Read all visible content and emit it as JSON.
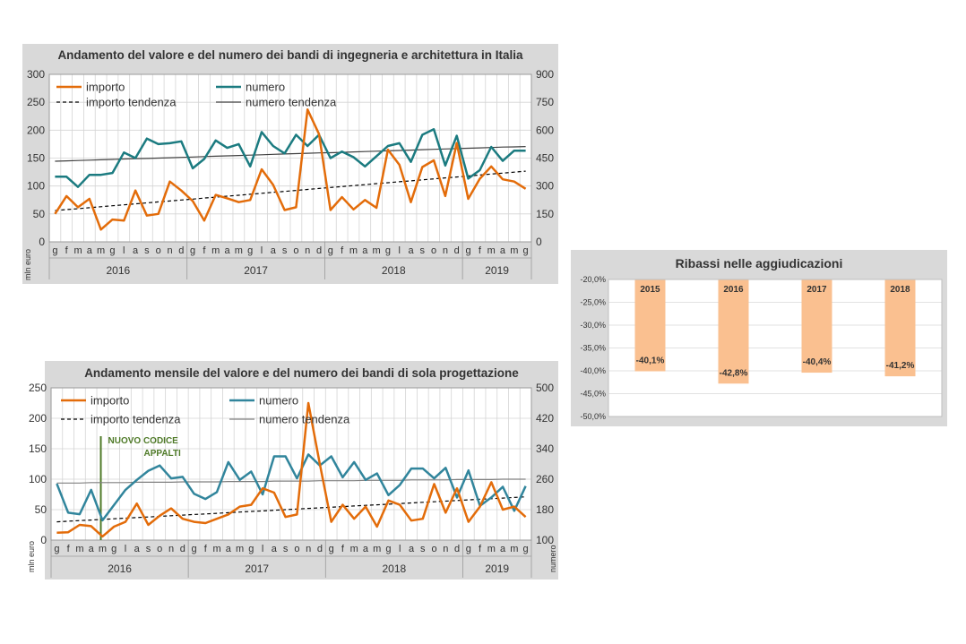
{
  "chart_data": [
    {
      "type": "line",
      "title": "Andamento del valore e del numero dei bandi di ingegneria e architettura in Italia",
      "ylabel": "mln euro",
      "ylabel_right": "",
      "ylim": [
        0,
        300
      ],
      "y_ticks": [
        0,
        50,
        100,
        150,
        200,
        250,
        300
      ],
      "y2lim": [
        0,
        900
      ],
      "y2_ticks": [
        0,
        150,
        300,
        450,
        600,
        750,
        900
      ],
      "month_labels": [
        "g",
        "f",
        "m",
        "a",
        "m",
        "g",
        "l",
        "a",
        "s",
        "o",
        "n",
        "d",
        "g",
        "f",
        "m",
        "a",
        "m",
        "g",
        "l",
        "a",
        "s",
        "o",
        "n",
        "d",
        "g",
        "f",
        "m",
        "a",
        "m",
        "g",
        "l",
        "a",
        "s",
        "o",
        "n",
        "d",
        "g",
        "f",
        "m",
        "a",
        "m",
        "g"
      ],
      "years": [
        {
          "label": "2016",
          "months": 12
        },
        {
          "label": "2017",
          "months": 12
        },
        {
          "label": "2018",
          "months": 12
        },
        {
          "label": "2019",
          "months": 6
        }
      ],
      "legend": {
        "importo": "importo",
        "numero": "numero",
        "importo_trend": "importo tendenza",
        "numero_trend": "numero tendenza"
      },
      "colors": {
        "importo": "#e36c0a",
        "numero": "#1b7b80",
        "importo_trend": "#000000",
        "numero_trend": "#404040"
      },
      "series": [
        {
          "name": "importo",
          "axis": "left",
          "values": [
            50,
            82,
            62,
            77,
            22,
            40,
            38,
            92,
            47,
            50,
            108,
            92,
            73,
            38,
            84,
            78,
            71,
            75,
            130,
            102,
            57,
            62,
            237,
            193,
            57,
            80,
            58,
            75,
            61,
            165,
            138,
            71,
            134,
            146,
            82,
            177,
            77,
            113,
            135,
            112,
            108,
            95
          ]
        },
        {
          "name": "numero",
          "axis": "right",
          "values": [
            350,
            350,
            295,
            360,
            360,
            370,
            480,
            450,
            555,
            525,
            530,
            540,
            395,
            445,
            545,
            505,
            525,
            405,
            590,
            515,
            475,
            575,
            515,
            575,
            450,
            485,
            455,
            405,
            460,
            515,
            530,
            430,
            575,
            605,
            410,
            570,
            340,
            385,
            510,
            435,
            490,
            490
          ]
        },
        {
          "name": "importo tendenza",
          "axis": "left",
          "values": [
            56.0,
            57.7,
            59.4,
            61.2,
            62.9,
            64.6,
            66.3,
            68.0,
            69.8,
            71.5,
            73.2,
            74.9,
            76.6,
            78.4,
            80.1,
            81.8,
            83.5,
            85.2,
            87.0,
            88.7,
            90.4,
            92.1,
            93.8,
            95.6,
            97.3,
            99.0,
            100.7,
            102.4,
            104.2,
            105.9,
            107.6,
            109.3,
            111.0,
            112.8,
            114.5,
            116.2,
            117.9,
            119.6,
            121.4,
            123.1,
            124.8,
            126.5
          ]
        },
        {
          "name": "numero tendenza",
          "axis": "right",
          "values": [
            433,
            435,
            437,
            439,
            441,
            443,
            445,
            447,
            448,
            450,
            452,
            454,
            456,
            458,
            460,
            462,
            464,
            466,
            468,
            470,
            472,
            474,
            476,
            478,
            479,
            481,
            483,
            485,
            487,
            489,
            491,
            493,
            495,
            497,
            499,
            501,
            503,
            505,
            507,
            509,
            510,
            512
          ]
        }
      ]
    },
    {
      "type": "bar",
      "title": "Ribassi nelle aggiudicazioni",
      "categories": [
        "2015",
        "2016",
        "2017",
        "2018"
      ],
      "values": [
        -40.1,
        -42.8,
        -40.4,
        -41.2
      ],
      "value_labels": [
        "-40,1%",
        "-42,8%",
        "-40,4%",
        "-41,2%"
      ],
      "ylim": [
        -50,
        -20
      ],
      "y_ticks": [
        "-20,0%",
        "-25,0%",
        "-30,0%",
        "-35,0%",
        "-40,0%",
        "-45,0%",
        "-50,0%"
      ],
      "colors": {
        "bar": "#fac090"
      }
    },
    {
      "type": "line",
      "title": "Andamento mensile del valore e del numero dei bandi di sola progettazione",
      "ylabel": "mln euro",
      "ylabel_right": "numero",
      "ylim": [
        0,
        250
      ],
      "y_ticks": [
        0,
        50,
        100,
        150,
        200,
        250
      ],
      "y2lim": [
        100,
        500
      ],
      "y2_ticks": [
        100,
        180,
        260,
        340,
        420,
        500
      ],
      "month_labels": [
        "g",
        "f",
        "m",
        "a",
        "m",
        "g",
        "l",
        "a",
        "s",
        "o",
        "n",
        "d",
        "g",
        "f",
        "m",
        "a",
        "m",
        "g",
        "l",
        "a",
        "s",
        "o",
        "n",
        "d",
        "g",
        "f",
        "m",
        "a",
        "m",
        "g",
        "l",
        "a",
        "s",
        "o",
        "n",
        "d",
        "g",
        "f",
        "m",
        "a",
        "m",
        "g"
      ],
      "years": [
        {
          "label": "2016",
          "months": 12
        },
        {
          "label": "2017",
          "months": 12
        },
        {
          "label": "2018",
          "months": 12
        },
        {
          "label": "2019",
          "months": 6
        }
      ],
      "legend": {
        "importo": "importo",
        "numero": "numero",
        "importo_trend": "importo tendenza",
        "numero_trend": "numero tendenza"
      },
      "annotation": {
        "line1": "NUOVO CODICE",
        "line2": "APPALTI",
        "month_index": 4
      },
      "colors": {
        "importo": "#e36c0a",
        "numero": "#31859c",
        "importo_trend": "#000000",
        "numero_trend": "#808080",
        "annotation": "#4f7a28"
      },
      "series": [
        {
          "name": "importo",
          "axis": "left",
          "values": [
            12,
            13,
            25,
            23,
            6,
            22,
            30,
            60,
            25,
            40,
            52,
            35,
            30,
            28,
            35,
            42,
            55,
            58,
            85,
            78,
            38,
            42,
            225,
            125,
            30,
            58,
            35,
            55,
            22,
            65,
            58,
            32,
            35,
            92,
            45,
            85,
            30,
            55,
            95,
            50,
            55,
            38
          ]
        },
        {
          "name": "numero",
          "axis": "right",
          "values": [
            248,
            172,
            168,
            232,
            152,
            192,
            232,
            258,
            282,
            296,
            262,
            266,
            222,
            208,
            226,
            305,
            258,
            280,
            220,
            320,
            320,
            262,
            325,
            296,
            320,
            265,
            305,
            258,
            275,
            218,
            245,
            288,
            288,
            262,
            290,
            212,
            283,
            190,
            212,
            240,
            177,
            242
          ]
        },
        {
          "name": "importo tendenza",
          "axis": "left",
          "values": [
            30.0,
            31.0,
            32.0,
            33.0,
            34.0,
            35.0,
            36.0,
            37.0,
            38.0,
            39.0,
            40.0,
            41.0,
            42.0,
            43.0,
            44.0,
            45.0,
            46.0,
            47.0,
            48.0,
            49.0,
            50.0,
            51.0,
            52.0,
            53.0,
            54.0,
            55.0,
            56.0,
            57.0,
            58.0,
            59.0,
            60.0,
            61.0,
            62.0,
            63.0,
            64.0,
            65.0,
            66.0,
            67.0,
            68.0,
            69.0,
            70.0,
            71.0
          ]
        },
        {
          "name": "numero tendenza",
          "axis": "right",
          "values": [
            250,
            250,
            250,
            251,
            251,
            251,
            251,
            252,
            252,
            252,
            252,
            253,
            253,
            253,
            253,
            254,
            254,
            254,
            254,
            255,
            255,
            255,
            255,
            256,
            256,
            256,
            256,
            257,
            257,
            257,
            257,
            258,
            258,
            258,
            258,
            259,
            259,
            259,
            259,
            260,
            260,
            260
          ]
        }
      ]
    }
  ]
}
